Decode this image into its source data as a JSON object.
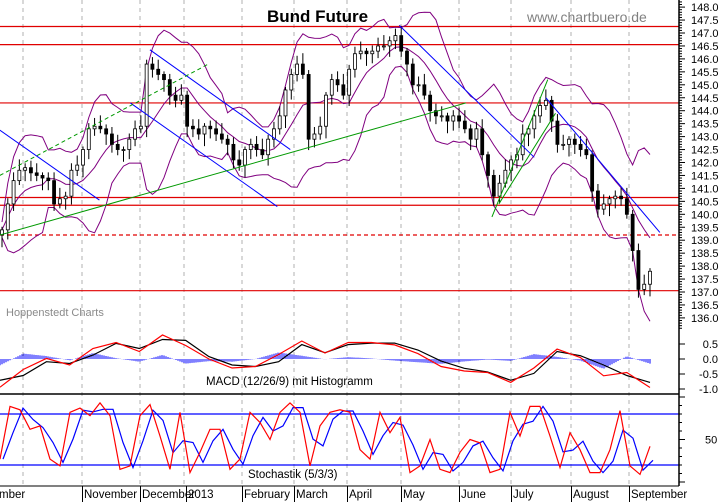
{
  "chart_data": {
    "type": "candlestick",
    "title": "Bund Future",
    "watermark": "www.chartbuero.de",
    "credit": "Hoppenstedt Charts",
    "price_axis": {
      "range": [
        135.5,
        148.2
      ],
      "ticks": [
        "148.0",
        "147.5",
        "147.0",
        "146.5",
        "146.0",
        "145.5",
        "145.0",
        "144.5",
        "144.0",
        "143.5",
        "143.0",
        "142.5",
        "142.0",
        "141.5",
        "141.0",
        "140.5",
        "140.0",
        "139.5",
        "139.0",
        "138.5",
        "138.0",
        "137.5",
        "137.0",
        "136.5",
        "136.0"
      ]
    },
    "x_labels": [
      "September",
      "November",
      "December",
      "2013",
      "February",
      "March",
      "April",
      "May",
      "June",
      "July",
      "August",
      "September"
    ],
    "grid": "vertical dashed at month starts",
    "close": [
      139.4,
      140.4,
      141.3,
      141.7,
      141.8,
      141.6,
      141.5,
      141.4,
      141.3,
      140.4,
      140.6,
      140.7,
      141.7,
      141.9,
      142.5,
      143.3,
      143.4,
      143.3,
      143.1,
      142.7,
      142.5,
      142.5,
      142.9,
      143.3,
      143.4,
      145.8,
      145.6,
      145.4,
      145.2,
      144.6,
      144.4,
      144.6,
      143.4,
      143.3,
      143.1,
      143.4,
      143.3,
      143.1,
      142.9,
      142.7,
      142.1,
      141.9,
      142.5,
      142.7,
      142.5,
      142.3,
      142.9,
      143.3,
      143.8,
      144.8,
      145.4,
      145.8,
      145.4,
      142.9,
      143.1,
      143.4,
      144.6,
      145.2,
      145.0,
      144.6,
      145.6,
      146.2,
      146.3,
      146.2,
      146.3,
      146.5,
      146.5,
      146.7,
      146.9,
      146.3,
      145.8,
      145.0,
      145.0,
      144.6,
      144.0,
      143.8,
      143.8,
      143.6,
      143.8,
      143.6,
      143.3,
      142.9,
      143.3,
      142.3,
      141.5,
      140.7,
      141.2,
      141.7,
      142.1,
      142.3,
      143.1,
      143.3,
      143.8,
      144.2,
      144.4,
      143.6,
      142.7,
      142.7,
      142.9,
      142.7,
      142.5,
      142.3,
      140.9,
      140.2,
      140.4,
      140.6,
      140.7,
      140.6,
      140.0,
      138.6,
      137.1,
      137.3,
      137.8
    ],
    "bollinger_color": "#800080",
    "horizontal_levels": [
      {
        "price": 147.25,
        "style": "solid"
      },
      {
        "price": 146.55,
        "style": "solid"
      },
      {
        "price": 144.3,
        "style": "solid"
      },
      {
        "price": 140.65,
        "style": "solid"
      },
      {
        "price": 140.35,
        "style": "solid"
      },
      {
        "price": 139.2,
        "style": "dashed"
      },
      {
        "price": 137.05,
        "style": "solid"
      }
    ],
    "level_color": "#e00000",
    "trendlines": [
      {
        "color": "#0000ff",
        "style": "solid",
        "from": [
          "2012-09-19",
          143.25
        ],
        "to": [
          "2012-11-10",
          140.55
        ]
      },
      {
        "color": "#0000ff",
        "style": "solid",
        "from": [
          "2012-12-08",
          146.35
        ],
        "to": [
          "2013-02-27",
          142.5
        ]
      },
      {
        "color": "#0000ff",
        "style": "solid",
        "from": [
          "2012-11-26",
          144.3
        ],
        "to": [
          "2013-02-20",
          140.3
        ]
      },
      {
        "color": "#009900",
        "style": "dashed",
        "from": [
          "2012-09-19",
          141.5
        ],
        "to": [
          "2013-01-14",
          145.8
        ]
      },
      {
        "color": "#009900",
        "style": "solid",
        "from": [
          "2012-09-19",
          139.2
        ],
        "to": [
          "2013-06-05",
          144.3
        ]
      },
      {
        "color": "#0000ff",
        "style": "solid",
        "from": [
          "2013-04-30",
          147.3
        ],
        "to": [
          "2013-07-13",
          142.2
        ]
      },
      {
        "color": "#0000ff",
        "style": "solid",
        "from": [
          "2013-07-19",
          144.5
        ],
        "to": [
          "2013-09-17",
          139.3
        ]
      },
      {
        "color": "#009900",
        "style": "solid",
        "from": [
          "2013-06-20",
          139.9
        ],
        "to": [
          "2013-07-20",
          145.2
        ]
      },
      {
        "color": "#009900",
        "style": "solid",
        "from": [
          "2013-06-24",
          140.4
        ],
        "to": [
          "2013-07-24",
          143.9
        ]
      }
    ],
    "macd": {
      "label": "MACD (12/26/9) mit Histogramm",
      "ticks": [
        "0.5",
        "0.0",
        "-0.5",
        "-1.0"
      ],
      "macd_color": "#ff0000",
      "signal_color": "#000000",
      "histogram_color": "#0000ff",
      "macd": [
        -0.94,
        -0.35,
        0.02,
        -0.2,
        0.35,
        0.55,
        0.25,
        0.8,
        0.45,
        0.0,
        -0.3,
        -0.25,
        0.15,
        0.6,
        0.2,
        0.55,
        0.55,
        0.47,
        0.18,
        -0.25,
        -0.4,
        -0.45,
        -0.78,
        -0.3,
        0.33,
        0.05,
        -0.56,
        -0.45,
        -0.95
      ],
      "signal": [
        -0.71,
        -0.55,
        -0.09,
        -0.15,
        0.13,
        0.52,
        0.35,
        0.65,
        0.62,
        0.08,
        -0.2,
        -0.25,
        -0.09,
        0.48,
        0.21,
        0.48,
        0.53,
        0.53,
        0.3,
        -0.07,
        -0.31,
        -0.43,
        -0.71,
        -0.48,
        0.25,
        0.11,
        -0.2,
        -0.55,
        -0.78
      ]
    },
    "stochastic": {
      "label": "Stochastik (5/3/3)",
      "ticks": [
        "50"
      ],
      "levels": [
        80,
        20
      ],
      "k_color": "#ff0000",
      "d_color": "#0000ff",
      "k": [
        27,
        89,
        85,
        62,
        66,
        27,
        19,
        82,
        87,
        78,
        93,
        78,
        15,
        19,
        78,
        91,
        54,
        15,
        82,
        11,
        35,
        62,
        62,
        15,
        27,
        82,
        70,
        50,
        82,
        93,
        82,
        19,
        66,
        82,
        85,
        82,
        38,
        27,
        82,
        58,
        76,
        11,
        19,
        50,
        15,
        11,
        35,
        50,
        46,
        11,
        15,
        82,
        54,
        89,
        89,
        54,
        17,
        58,
        38,
        11,
        11,
        38,
        84,
        19,
        9,
        42
      ]
    }
  }
}
